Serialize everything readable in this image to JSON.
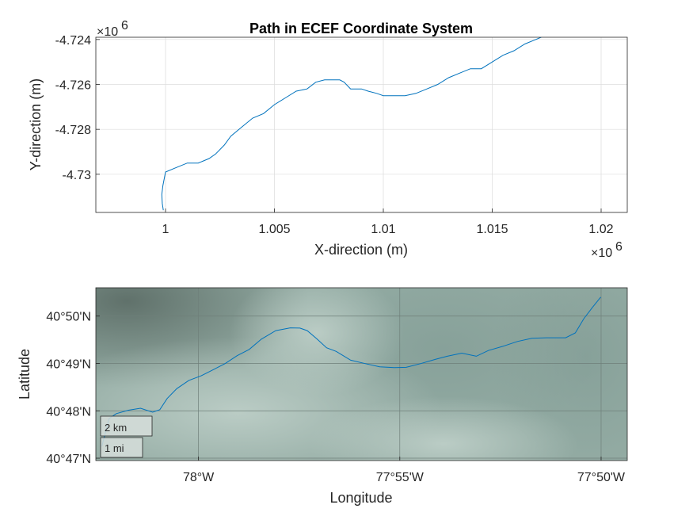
{
  "chart_data": [
    {
      "type": "line",
      "title": "Path in ECEF Coordinate System",
      "xlabel": "X-direction (m)",
      "ylabel": "Y-direction (m)",
      "x_multiplier_label": "×10",
      "x_multiplier_exp": "6",
      "y_multiplier_label": "×10",
      "y_multiplier_exp": "6",
      "xlim": [
        0.9968,
        1.0212
      ],
      "ylim": [
        -4.7317,
        -4.7239
      ],
      "xticks": [
        1.0,
        1.005,
        1.01,
        1.015,
        1.02
      ],
      "xtick_labels": [
        "1",
        "1.005",
        "1.01",
        "1.015",
        "1.02"
      ],
      "yticks": [
        -4.724,
        -4.726,
        -4.728,
        -4.73
      ],
      "ytick_labels": [
        "-4.724",
        "-4.726",
        "-4.728",
        "-4.73"
      ],
      "grid": true,
      "line_color": "#0072BD",
      "series": [
        {
          "x": [
            0.9999,
            0.99985,
            0.99983,
            0.99988,
            1.0,
            1.0005,
            1.001,
            1.0015,
            1.002,
            1.0023,
            1.0027,
            1.003,
            1.0035,
            1.004,
            1.0045,
            1.005,
            1.0055,
            1.006,
            1.0065,
            1.0069,
            1.0073,
            1.0076,
            1.008,
            1.0082,
            1.0085,
            1.0087,
            1.009,
            1.0093,
            1.0097,
            1.01,
            1.0105,
            1.011,
            1.0115,
            1.012,
            1.0125,
            1.013,
            1.0135,
            1.014,
            1.0145,
            1.015,
            1.0155,
            1.016,
            1.0165,
            1.017,
            1.0175,
            1.0178,
            1.018,
            1.0183,
            1.0186
          ],
          "y": [
            -4.7316,
            -4.7313,
            -4.7309,
            -4.7305,
            -4.7299,
            -4.7297,
            -4.7295,
            -4.7295,
            -4.7293,
            -4.7291,
            -4.7287,
            -4.7283,
            -4.7279,
            -4.7275,
            -4.7273,
            -4.7269,
            -4.7266,
            -4.7263,
            -4.7262,
            -4.7259,
            -4.7258,
            -4.7258,
            -4.7258,
            -4.7259,
            -4.7262,
            -4.7262,
            -4.7262,
            -4.7263,
            -4.7264,
            -4.7265,
            -4.7265,
            -4.7265,
            -4.7264,
            -4.7262,
            -4.726,
            -4.7257,
            -4.7255,
            -4.7253,
            -4.7253,
            -4.725,
            -4.7247,
            -4.7245,
            -4.7242,
            -4.724,
            -4.7238,
            -4.7234,
            -4.723,
            -4.7227,
            -4.7239
          ]
        }
      ]
    },
    {
      "type": "line",
      "xlabel": "Longitude",
      "ylabel": "Latitude",
      "xlim": [
        -78.0425,
        -77.8225
      ],
      "ylim": [
        40.7825,
        40.8433
      ],
      "xticks": [
        -78.0,
        -77.91667,
        -77.83333
      ],
      "xtick_labels": [
        "78°W",
        "77°55'W",
        "77°50'W"
      ],
      "yticks": [
        40.83333,
        40.81667,
        40.8,
        40.78333
      ],
      "ytick_labels": [
        "40°50'N",
        "40°49'N",
        "40°48'N",
        "40°47'N"
      ],
      "grid": true,
      "line_color": "#0072BD",
      "scalebar": [
        "2 km",
        "1 mi"
      ],
      "series": [
        {
          "x": [
            -78.04,
            -78.037,
            -78.034,
            -78.029,
            -78.024,
            -78.019,
            -78.016,
            -78.013,
            -78.009,
            -78.004,
            -77.999,
            -77.994,
            -77.989,
            -77.984,
            -77.979,
            -77.974,
            -77.968,
            -77.962,
            -77.958,
            -77.955,
            -77.951,
            -77.947,
            -77.943,
            -77.937,
            -77.931,
            -77.925,
            -77.919,
            -77.914,
            -77.908,
            -77.902,
            -77.897,
            -77.891,
            -77.885,
            -77.88,
            -77.874,
            -77.868,
            -77.862,
            -77.856,
            -77.848,
            -77.844,
            -77.8405,
            -77.837,
            -77.8335
          ],
          "y": [
            40.7875,
            40.7973,
            40.799,
            40.8002,
            40.8009,
            40.7995,
            40.8004,
            40.8043,
            40.8078,
            40.8107,
            40.8123,
            40.8144,
            40.8166,
            40.8194,
            40.8216,
            40.8252,
            40.8282,
            40.8292,
            40.8291,
            40.8282,
            40.8253,
            40.8222,
            40.8209,
            40.8178,
            40.8166,
            40.8155,
            40.8152,
            40.8153,
            40.8166,
            40.8181,
            40.8192,
            40.8203,
            40.8192,
            40.8212,
            40.8227,
            40.8244,
            40.8255,
            40.8257,
            40.8257,
            40.8274,
            40.8324,
            40.8363,
            40.84
          ]
        }
      ]
    }
  ]
}
